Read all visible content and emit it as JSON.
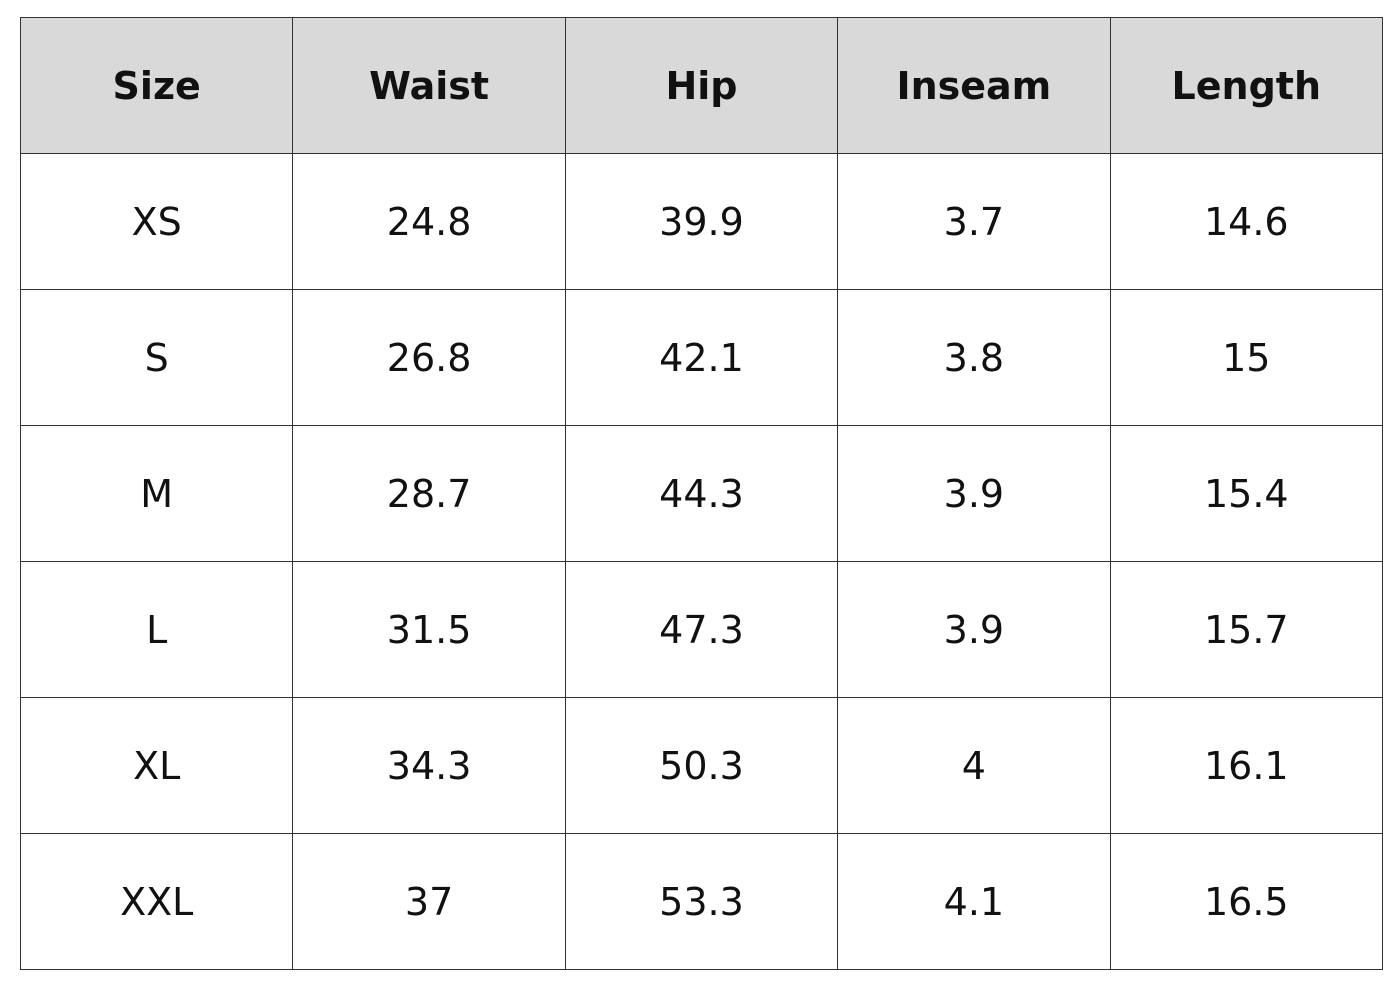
{
  "chart_data": {
    "type": "table",
    "columns": [
      "Size",
      "Waist",
      "Hip",
      "Inseam",
      "Length"
    ],
    "rows": [
      [
        "XS",
        "24.8",
        "39.9",
        "3.7",
        "14.6"
      ],
      [
        "S",
        "26.8",
        "42.1",
        "3.8",
        "15"
      ],
      [
        "M",
        "28.7",
        "44.3",
        "3.9",
        "15.4"
      ],
      [
        "L",
        "31.5",
        "47.3",
        "3.9",
        "15.7"
      ],
      [
        "XL",
        "34.3",
        "50.3",
        "4",
        "16.1"
      ],
      [
        "XXL",
        "37",
        "53.3",
        "4.1",
        "16.5"
      ]
    ],
    "header_background": "#d9d9d9"
  }
}
